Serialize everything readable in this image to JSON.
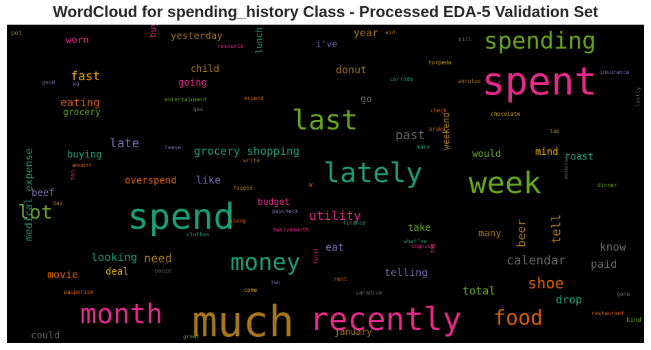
{
  "title": "WordCloud for spending_history Class - Processed EDA-5 Validation Set",
  "chart_data": {
    "type": "wordcloud",
    "background": "#000000",
    "words": [
      {
        "text": "much",
        "color": "#a6761d"
      },
      {
        "text": "spent",
        "color": "#e7298a"
      },
      {
        "text": "spend",
        "color": "#1b9e77"
      },
      {
        "text": "recently",
        "color": "#e7298a"
      },
      {
        "text": "week",
        "color": "#66a61e"
      },
      {
        "text": "month",
        "color": "#e7298a"
      },
      {
        "text": "last",
        "color": "#66a61e"
      },
      {
        "text": "lately",
        "color": "#1b9e77"
      },
      {
        "text": "money",
        "color": "#1b9e77"
      },
      {
        "text": "spending",
        "color": "#66a61e"
      },
      {
        "text": "food",
        "color": "#d95f02"
      },
      {
        "text": "lot",
        "color": "#66a61e"
      },
      {
        "text": "shoe",
        "color": "#d95f02"
      },
      {
        "text": "utility",
        "color": "#e7298a"
      },
      {
        "text": "calendar",
        "color": "#666666"
      },
      {
        "text": "grocery shopping",
        "color": "#1b9e77"
      },
      {
        "text": "past",
        "color": "#666666"
      },
      {
        "text": "know",
        "color": "#666666"
      },
      {
        "text": "paid",
        "color": "#666666"
      },
      {
        "text": "tell",
        "color": "#a6761d"
      },
      {
        "text": "beer",
        "color": "#a6761d"
      },
      {
        "text": "fast",
        "color": "#e6ab02"
      },
      {
        "text": "eating",
        "color": "#d95f02"
      },
      {
        "text": "late",
        "color": "#7570b3"
      },
      {
        "text": "looking",
        "color": "#1b9e77"
      },
      {
        "text": "need",
        "color": "#a6761d"
      },
      {
        "text": "drop",
        "color": "#1b9e77"
      },
      {
        "text": "total",
        "color": "#66a61e"
      },
      {
        "text": "movie",
        "color": "#d95f02"
      },
      {
        "text": "telling",
        "color": "#7570b3"
      },
      {
        "text": "medical expense",
        "color": "#1b9e77"
      },
      {
        "text": "donut",
        "color": "#a6761d"
      },
      {
        "text": "year",
        "color": "#a6761d"
      },
      {
        "text": "i've",
        "color": "#7570b3"
      },
      {
        "text": "yesterday",
        "color": "#a6761d"
      },
      {
        "text": "worn",
        "color": "#e7298a"
      },
      {
        "text": "buy",
        "color": "#e7298a"
      },
      {
        "text": "lunch",
        "color": "#1b9e77"
      },
      {
        "text": "child",
        "color": "#a6761d"
      },
      {
        "text": "going",
        "color": "#e7298a"
      },
      {
        "text": "grocery",
        "color": "#66a61e"
      },
      {
        "text": "buying",
        "color": "#1b9e77"
      },
      {
        "text": "like",
        "color": "#7570b3"
      },
      {
        "text": "overspend",
        "color": "#d95f02"
      },
      {
        "text": "beef",
        "color": "#7570b3"
      },
      {
        "text": "budget",
        "color": "#e7298a"
      },
      {
        "text": "eat",
        "color": "#7570b3"
      },
      {
        "text": "take",
        "color": "#66a61e"
      },
      {
        "text": "many",
        "color": "#a6761d"
      },
      {
        "text": "would",
        "color": "#66a61e"
      },
      {
        "text": "mind",
        "color": "#e6ab02"
      },
      {
        "text": "roast",
        "color": "#1b9e77"
      },
      {
        "text": "weekend",
        "color": "#a6761d"
      },
      {
        "text": "go",
        "color": "#666666"
      },
      {
        "text": "deal",
        "color": "#e6ab02"
      },
      {
        "text": "could",
        "color": "#666666"
      },
      {
        "text": "january",
        "color": "#a6761d"
      },
      {
        "text": "v",
        "color": "#d95f02"
      },
      {
        "text": "pot",
        "color": "#a6761d"
      },
      {
        "text": "aid",
        "color": "#a6761d"
      },
      {
        "text": "bill",
        "color": "#666666"
      },
      {
        "text": "resource",
        "color": "#e7298a"
      },
      {
        "text": "good",
        "color": "#7570b3"
      },
      {
        "text": "wa",
        "color": "#7570b3"
      },
      {
        "text": "corrode",
        "color": "#1b9e77"
      },
      {
        "text": "torpedo",
        "color": "#e6ab02"
      },
      {
        "text": "insurance",
        "color": "#7570b3"
      },
      {
        "text": "annulus",
        "color": "#a6761d"
      },
      {
        "text": "run",
        "color": "#e7298a"
      },
      {
        "text": "entertainment",
        "color": "#66a61e"
      },
      {
        "text": "expend",
        "color": "#d95f02"
      },
      {
        "text": "gas",
        "color": "#666666"
      },
      {
        "text": "check",
        "color": "#d95f02"
      },
      {
        "text": "chocolate",
        "color": "#e6ab02"
      },
      {
        "text": "lastly",
        "color": "#666666"
      },
      {
        "text": "brake",
        "color": "#d95f02"
      },
      {
        "text": "tab",
        "color": "#a6761d"
      },
      {
        "text": "make",
        "color": "#1b9e77"
      },
      {
        "text": "lease",
        "color": "#7570b3"
      },
      {
        "text": "amount",
        "color": "#d95f02"
      },
      {
        "text": "write",
        "color": "#a6761d"
      },
      {
        "text": "ton",
        "color": "#e7298a"
      },
      {
        "text": "day",
        "color": "#a6761d"
      },
      {
        "text": "fagged",
        "color": "#a6761d"
      },
      {
        "text": "dinner",
        "color": "#66a61e"
      },
      {
        "text": "monetary",
        "color": "#666666"
      },
      {
        "text": "paycheck",
        "color": "#7570b3"
      },
      {
        "text": "along",
        "color": "#d95f02"
      },
      {
        "text": "finance",
        "color": "#1b9e77"
      },
      {
        "text": "twelvemonth",
        "color": "#e7298a"
      },
      {
        "text": "clothes",
        "color": "#1b9e77"
      },
      {
        "text": "what've",
        "color": "#1b9e77"
      },
      {
        "text": "cognise",
        "color": "#e7298a"
      },
      {
        "text": "fag",
        "color": "#e7298a"
      },
      {
        "text": "booze",
        "color": "#666666"
      },
      {
        "text": "final",
        "color": "#e7298a"
      },
      {
        "text": "two",
        "color": "#7570b3"
      },
      {
        "text": "rent",
        "color": "#d95f02"
      },
      {
        "text": "pauperism",
        "color": "#d95f02"
      },
      {
        "text": "come",
        "color": "#e6ab02"
      },
      {
        "text": "vanadium",
        "color": "#666666"
      },
      {
        "text": "gone",
        "color": "#666666"
      },
      {
        "text": "restaurant",
        "color": "#d95f02"
      },
      {
        "text": "kind",
        "color": "#66a61e"
      },
      {
        "text": "great",
        "color": "#66a61e"
      }
    ]
  }
}
